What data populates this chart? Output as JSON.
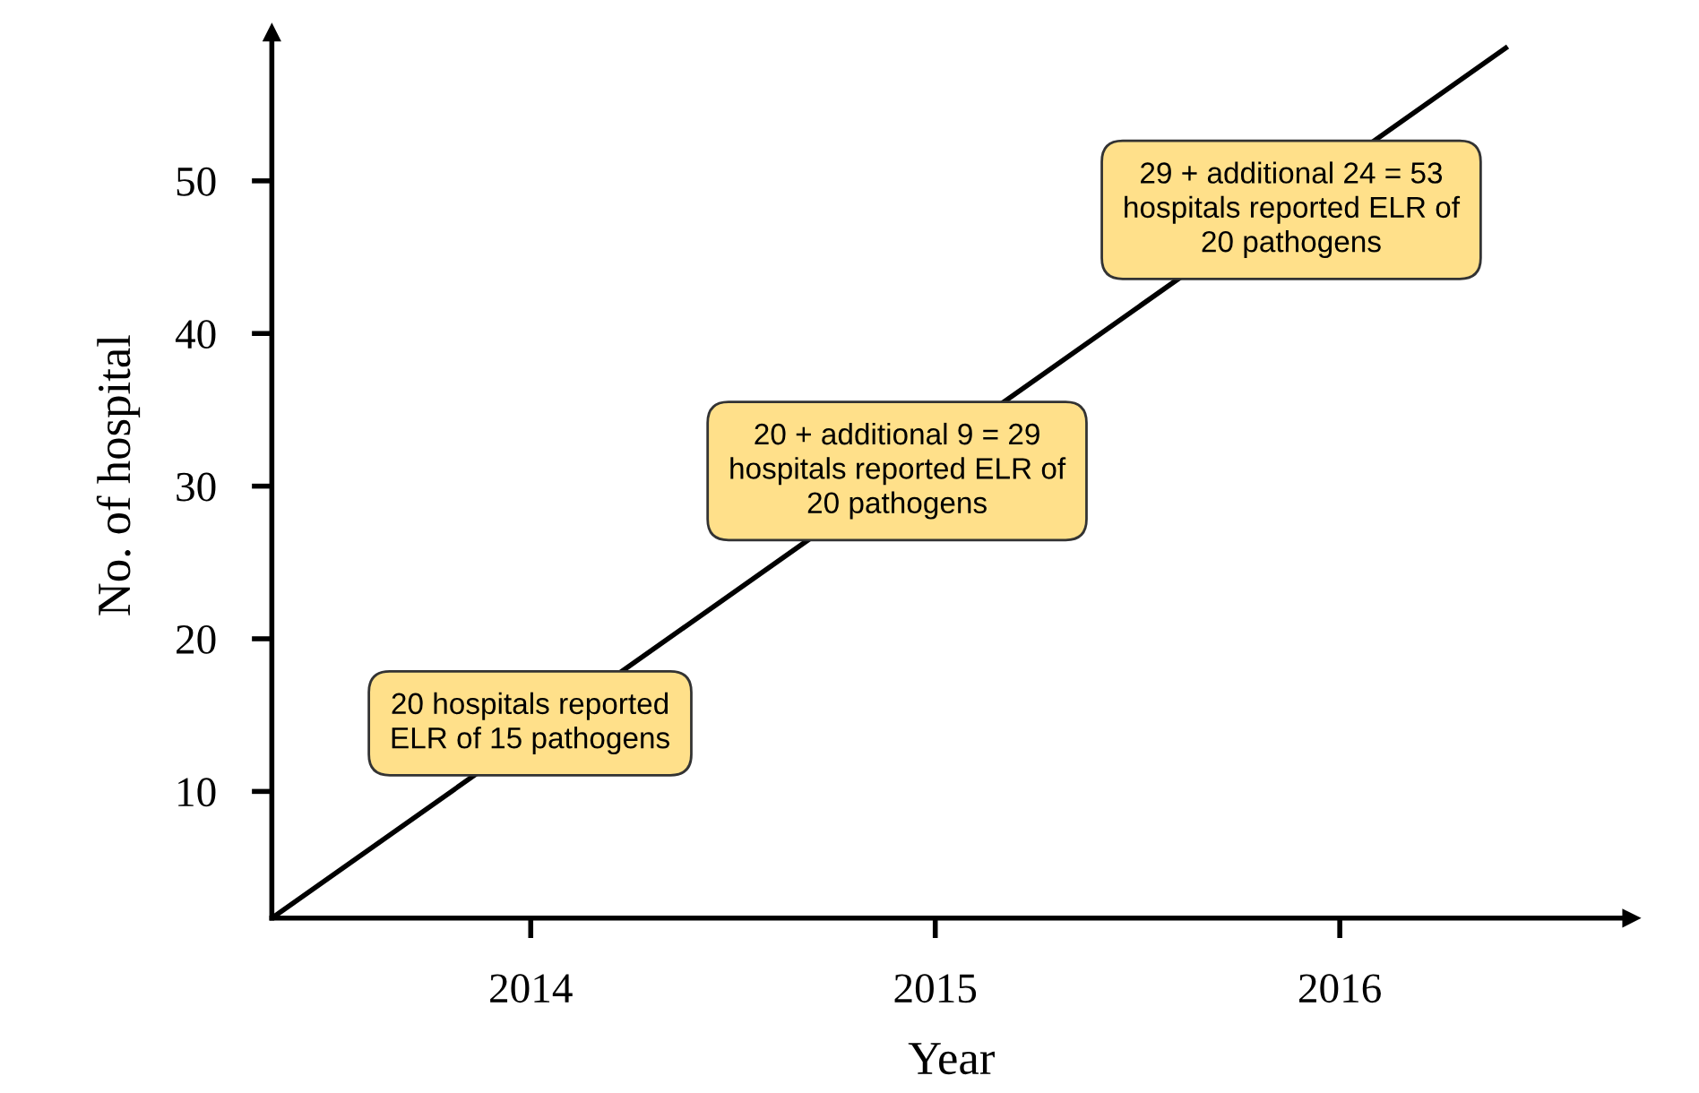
{
  "chart_data": {
    "type": "line",
    "xlabel": "Year",
    "ylabel": "No. of hospital",
    "xlim": [
      2013.36,
      2016.72
    ],
    "ylim": [
      1.7,
      59.7
    ],
    "xticks": [
      2014,
      2015,
      2016
    ],
    "yticks": [
      10,
      20,
      30,
      40,
      50
    ],
    "series": [
      {
        "color": "#000000",
        "x": [
          2013.36,
          2016.41
        ],
        "values": [
          1.7,
          58.7
        ]
      }
    ],
    "marker": "none",
    "line_style": "solid",
    "grid": false,
    "annotations": [
      "20 hospitals reported\nELR of 15 pathogens",
      "20 + additional 9 = 29\nhospitals reported ELR of\n20 pathogens",
      "29 + additional 24 = 53\nhospitals reported ELR of\n20 pathogens"
    ]
  }
}
